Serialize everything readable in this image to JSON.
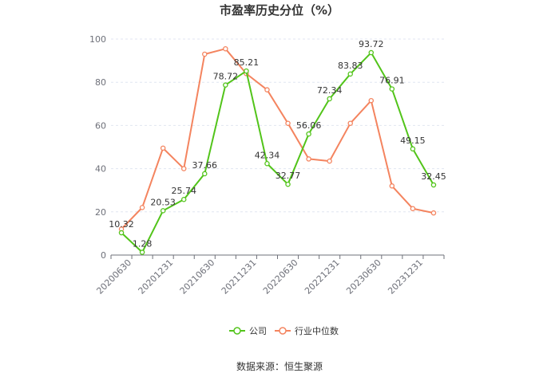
{
  "chart_data": {
    "type": "line",
    "title": "市盈率历史分位（%）",
    "xlabel": "",
    "ylabel": "",
    "ylim": [
      0,
      100
    ],
    "yticks": [
      0,
      20,
      40,
      60,
      80,
      100
    ],
    "grid": true,
    "legend_position": "bottom-center",
    "x_tick_labels": [
      "20200630",
      "20201231",
      "20210630",
      "20211231",
      "20220630",
      "20221231",
      "20230630",
      "20231231"
    ],
    "series": [
      {
        "name": "公司",
        "color": "#52c41a",
        "values": [
          10.32,
          1.28,
          20.53,
          25.74,
          37.66,
          78.72,
          85.21,
          42.34,
          32.77,
          56.06,
          72.34,
          83.83,
          93.72,
          76.91,
          49.15,
          32.45
        ],
        "data_labels": [
          "10.32",
          "1.28",
          "20.53",
          "25.74",
          "37.66",
          "78.72",
          "85.21",
          "42.34",
          "32.77",
          "56.06",
          "72.34",
          "83.83",
          "93.72",
          "76.91",
          "49.15",
          "32.45"
        ]
      },
      {
        "name": "行业中位数",
        "color": "#f4845f",
        "values": [
          12,
          22,
          49.5,
          40,
          93,
          95.5,
          84,
          76.5,
          61,
          44.5,
          43.5,
          61,
          71.5,
          32,
          21.5,
          19.5
        ]
      }
    ]
  },
  "footer": {
    "source": "数据来源：恒生聚源"
  }
}
